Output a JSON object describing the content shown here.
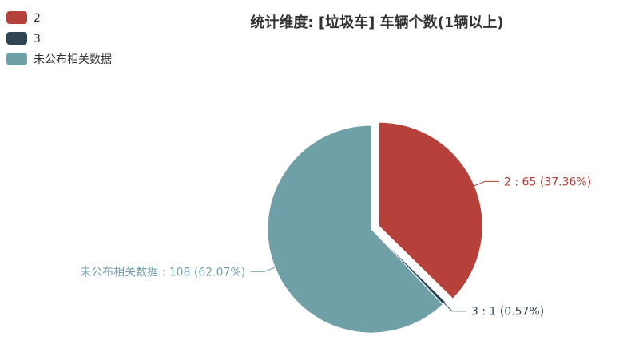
{
  "chart_data": {
    "type": "pie",
    "title": "统计维度: [垃圾车] 车辆个数(1辆以上)",
    "legend_position": "top-left",
    "label_separator": " : ",
    "slices": [
      {
        "name": "2",
        "value": 65,
        "percent": "37.36%",
        "color": "#b5413a",
        "selected": true
      },
      {
        "name": "3",
        "value": 1,
        "percent": "0.57%",
        "color": "#2f4554",
        "selected": false
      },
      {
        "name": "未公布相关数据",
        "value": 108,
        "percent": "62.07%",
        "color": "#6f9fa7",
        "selected": false
      }
    ]
  }
}
